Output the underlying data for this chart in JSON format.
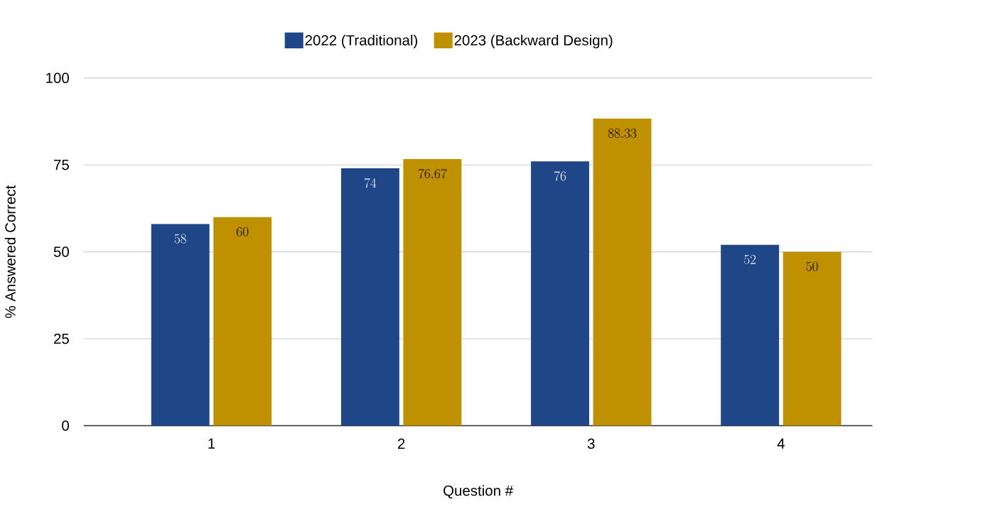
{
  "chart_data": {
    "type": "bar",
    "xlabel": "Question #",
    "ylabel": "% Answered Correct",
    "categories": [
      "1",
      "2",
      "3",
      "4"
    ],
    "series": [
      {
        "name": "2022 (Traditional)",
        "color": "#1f4788",
        "values": [
          58,
          74,
          76,
          52
        ]
      },
      {
        "name": "2023 (Backward Design)",
        "color": "#bf9000",
        "values": [
          60,
          76.67,
          88.33,
          50
        ]
      }
    ],
    "ylim": [
      0,
      100
    ],
    "yticks": [
      0,
      25,
      50,
      75,
      100
    ],
    "grid": "y",
    "legend": "top",
    "data_labels": true
  }
}
